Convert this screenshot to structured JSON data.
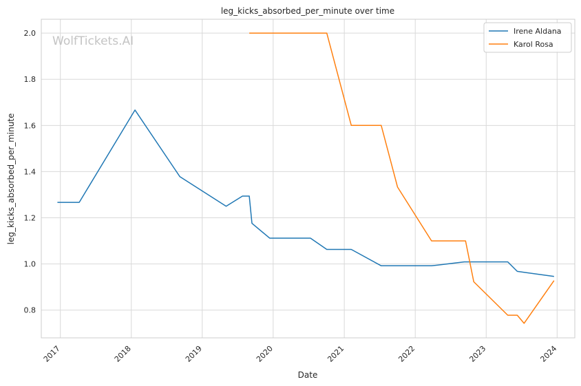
{
  "chart_data": {
    "type": "line",
    "title": "leg_kicks_absorbed_per_minute over time",
    "xlabel": "Date",
    "ylabel": "leg_kicks_absorbed_per_minute",
    "watermark": "WolfTickets.AI",
    "xlim": [
      "2016-09-25",
      "2024-04-01"
    ],
    "ylim": [
      0.68,
      2.06
    ],
    "x_ticks": [
      "2017",
      "2018",
      "2019",
      "2020",
      "2021",
      "2022",
      "2023",
      "2024"
    ],
    "y_ticks": [
      "0.8",
      "1.0",
      "1.2",
      "1.4",
      "1.6",
      "1.8",
      "2.0"
    ],
    "grid": true,
    "legend_position": "top-right",
    "series": [
      {
        "name": "Irene Aldana",
        "color": "#1f77b4",
        "points": [
          {
            "x": "2016-12-17",
            "y": 1.267
          },
          {
            "x": "2017-04-08",
            "y": 1.267
          },
          {
            "x": "2018-01-20",
            "y": 1.667
          },
          {
            "x": "2018-09-08",
            "y": 1.378
          },
          {
            "x": "2019-05-04",
            "y": 1.25
          },
          {
            "x": "2019-07-27",
            "y": 1.294
          },
          {
            "x": "2019-08-31",
            "y": 1.294
          },
          {
            "x": "2019-09-14",
            "y": 1.176
          },
          {
            "x": "2019-12-14",
            "y": 1.112
          },
          {
            "x": "2020-07-11",
            "y": 1.112
          },
          {
            "x": "2020-10-03",
            "y": 1.063
          },
          {
            "x": "2021-02-06",
            "y": 1.063
          },
          {
            "x": "2021-07-10",
            "y": 0.992
          },
          {
            "x": "2022-03-26",
            "y": 0.992
          },
          {
            "x": "2022-09-10",
            "y": 1.009
          },
          {
            "x": "2023-04-22",
            "y": 1.009
          },
          {
            "x": "2023-06-10",
            "y": 0.968
          },
          {
            "x": "2023-12-16",
            "y": 0.946
          }
        ]
      },
      {
        "name": "Karol Rosa",
        "color": "#ff7f0e",
        "points": [
          {
            "x": "2019-08-31",
            "y": 2.0
          },
          {
            "x": "2020-10-03",
            "y": 2.0
          },
          {
            "x": "2021-02-06",
            "y": 1.6
          },
          {
            "x": "2021-07-10",
            "y": 1.6
          },
          {
            "x": "2021-10-02",
            "y": 1.333
          },
          {
            "x": "2022-03-26",
            "y": 1.1
          },
          {
            "x": "2022-09-17",
            "y": 1.1
          },
          {
            "x": "2022-10-29",
            "y": 0.923
          },
          {
            "x": "2023-04-22",
            "y": 0.778
          },
          {
            "x": "2023-06-10",
            "y": 0.778
          },
          {
            "x": "2023-07-15",
            "y": 0.743
          },
          {
            "x": "2023-12-16",
            "y": 0.928
          }
        ]
      }
    ]
  }
}
